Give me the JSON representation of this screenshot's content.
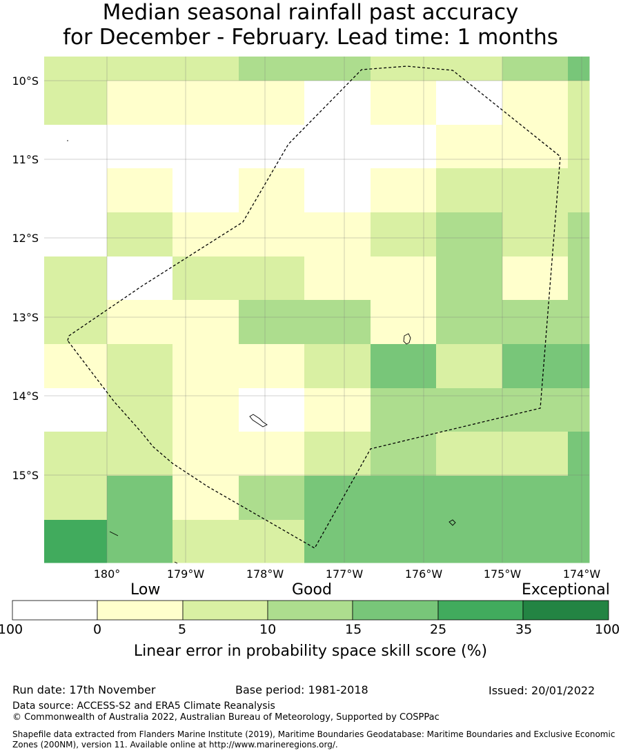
{
  "title": {
    "line1": "Median seasonal rainfall past accuracy",
    "line2": "for December - February. Lead time: 1 months"
  },
  "map": {
    "lon_labels": [
      "180°",
      "179°W",
      "178°W",
      "177°W",
      "176°W",
      "175°W",
      "174°W"
    ],
    "lat_labels": [
      "10°S",
      "11°S",
      "12°S",
      "13°S",
      "14°S",
      "15°S"
    ],
    "skill_grid_categories": [
      [
        2,
        2,
        2,
        3,
        3,
        2,
        2,
        3,
        4
      ],
      [
        2,
        1,
        1,
        1,
        0,
        1,
        0,
        1,
        2
      ],
      [
        0,
        0,
        0,
        0,
        0,
        0,
        1,
        1,
        2
      ],
      [
        0,
        1,
        0,
        1,
        0,
        1,
        2,
        2,
        2
      ],
      [
        0,
        2,
        1,
        1,
        1,
        2,
        3,
        2,
        3
      ],
      [
        2,
        0,
        2,
        2,
        1,
        1,
        3,
        1,
        3
      ],
      [
        2,
        1,
        1,
        3,
        3,
        1,
        3,
        3,
        3
      ],
      [
        1,
        2,
        1,
        1,
        2,
        4,
        2,
        4,
        4
      ],
      [
        0,
        2,
        1,
        0,
        1,
        3,
        3,
        3,
        3
      ],
      [
        2,
        2,
        1,
        1,
        2,
        3,
        2,
        2,
        4
      ],
      [
        2,
        4,
        1,
        3,
        4,
        4,
        4,
        4,
        4
      ],
      [
        5,
        4,
        2,
        2,
        4,
        4,
        4,
        4,
        4
      ]
    ]
  },
  "colorbar": {
    "category_labels": [
      "Low",
      "Good",
      "Exceptional"
    ],
    "tick_labels": [
      "-100",
      "0",
      "5",
      "10",
      "15",
      "25",
      "35",
      "100"
    ],
    "colors": [
      "#ffffff",
      "#ffffcc",
      "#d9f0a3",
      "#addd8e",
      "#78c679",
      "#41ab5d",
      "#238443"
    ],
    "title": "Linear error in probability space skill score (%)"
  },
  "footer": {
    "run_date": "Run date: 17th November",
    "base_period": "Base period: 1981-2018",
    "issued": "Issued: 20/01/2022",
    "data_source": "Data source: ACCESS-S2 and ERA5 Climate Reanalysis",
    "copyright": "© Commonwealth of Australia 2022, Australian Bureau of Meteorology, Supported by COSPPac",
    "shapefile": "Shapefile data extracted from Flanders Marine Institute (2019), Maritime Boundaries Geodatabase: Maritime Boundaries and Exclusive Economic Zones (200NM), version 11. Available online at http://www.marineregions.org/."
  }
}
